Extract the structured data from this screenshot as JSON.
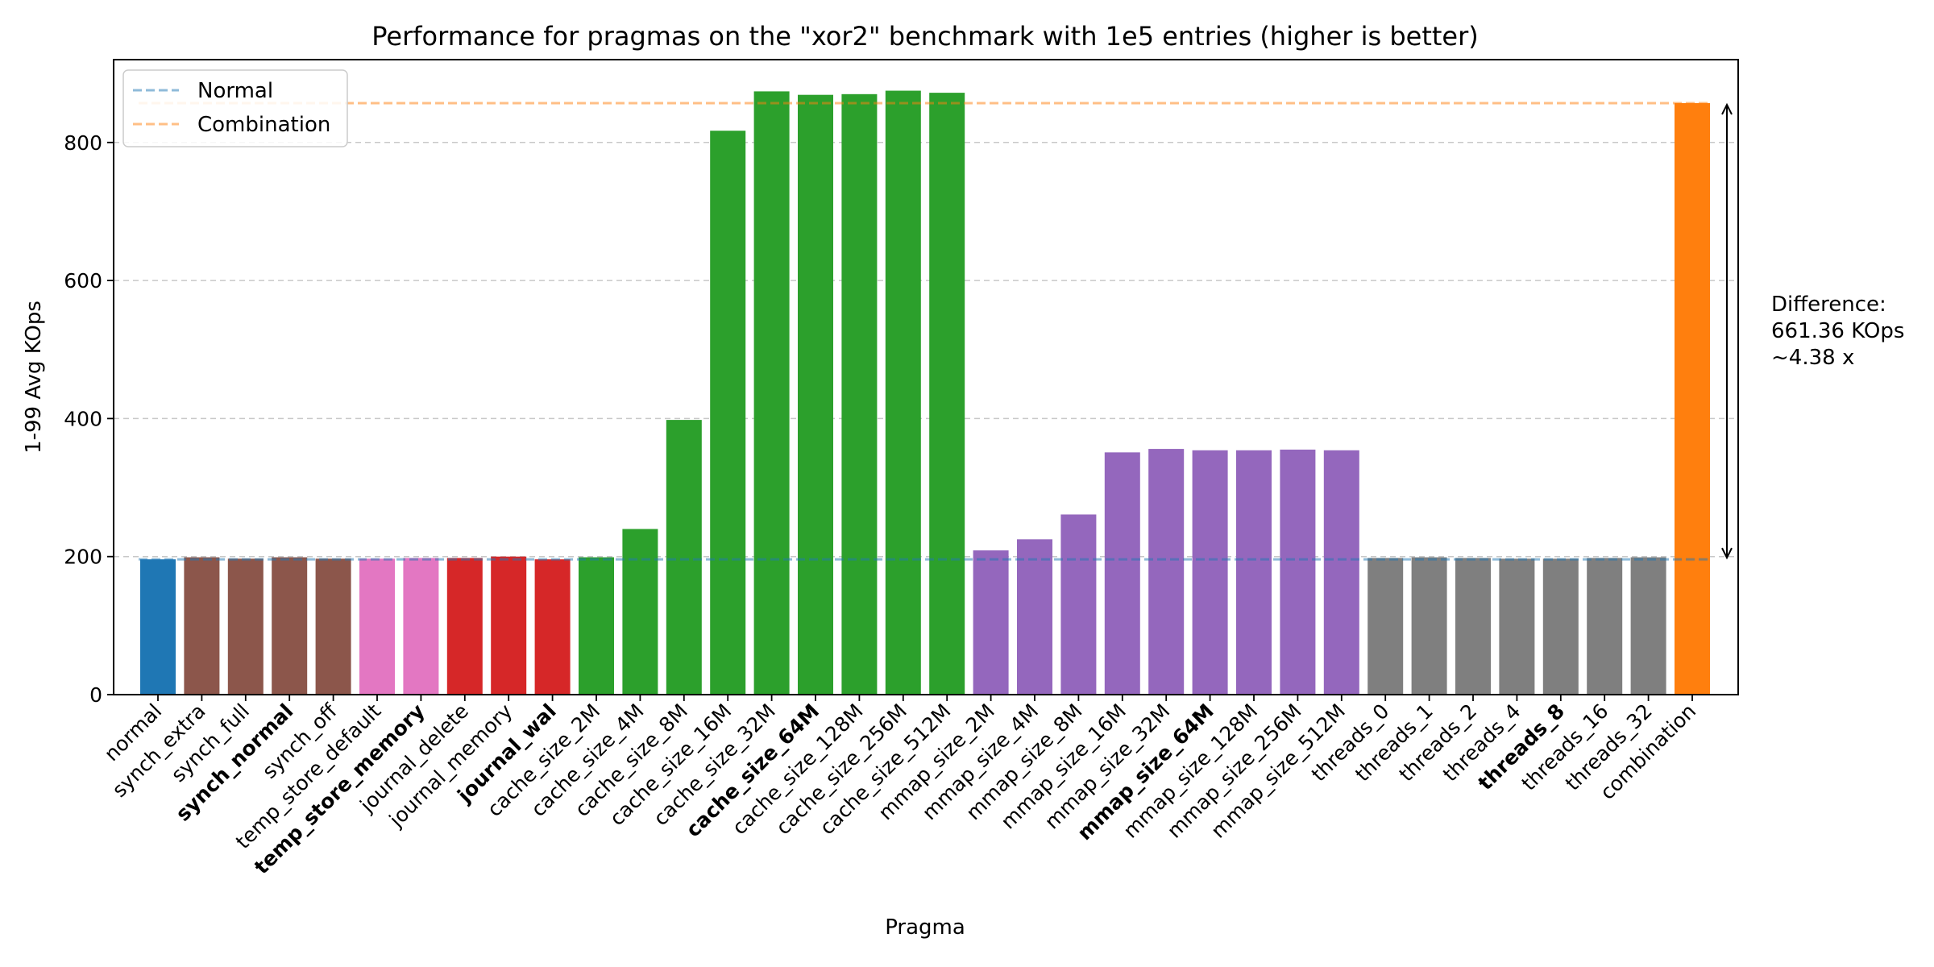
{
  "chart_data": {
    "type": "bar",
    "title": "Performance for pragmas on the \"xor2\" benchmark with 1e5 entries (higher is better)",
    "xlabel": "Pragma",
    "ylabel": "1-99 Avg KOps",
    "ylim": [
      0,
      920
    ],
    "yticks": [
      0,
      200,
      400,
      600,
      800
    ],
    "grid": "y-dashed",
    "legend_position": "top-left",
    "categories": [
      "normal",
      "synch_extra",
      "synch_full",
      "synch_normal",
      "synch_off",
      "temp_store_default",
      "temp_store_memory",
      "journal_delete",
      "journal_memory",
      "journal_wal",
      "cache_size_2M",
      "cache_size_4M",
      "cache_size_8M",
      "cache_size_16M",
      "cache_size_32M",
      "cache_size_64M",
      "cache_size_128M",
      "cache_size_256M",
      "cache_size_512M",
      "mmap_size_2M",
      "mmap_size_4M",
      "mmap_size_8M",
      "mmap_size_16M",
      "mmap_size_32M",
      "mmap_size_64M",
      "mmap_size_128M",
      "mmap_size_256M",
      "mmap_size_512M",
      "threads_0",
      "threads_1",
      "threads_2",
      "threads_4",
      "threads_8",
      "threads_16",
      "threads_32",
      "combination"
    ],
    "values": [
      196,
      199,
      197,
      199,
      197,
      197,
      198,
      198,
      200,
      196,
      199,
      240,
      398,
      817,
      874,
      869,
      870,
      875,
      872,
      209,
      225,
      261,
      351,
      356,
      354,
      354,
      355,
      354,
      198,
      199,
      198,
      197,
      197,
      198,
      199,
      857
    ],
    "bold_categories": [
      "synch_normal",
      "temp_store_memory",
      "journal_wal",
      "cache_size_64M",
      "mmap_size_64M",
      "threads_8"
    ],
    "bar_colors": [
      "#1f77b4",
      "#8c564b",
      "#8c564b",
      "#8c564b",
      "#8c564b",
      "#e377c2",
      "#e377c2",
      "#d62728",
      "#d62728",
      "#d62728",
      "#2ca02c",
      "#2ca02c",
      "#2ca02c",
      "#2ca02c",
      "#2ca02c",
      "#2ca02c",
      "#2ca02c",
      "#2ca02c",
      "#2ca02c",
      "#9467bd",
      "#9467bd",
      "#9467bd",
      "#9467bd",
      "#9467bd",
      "#9467bd",
      "#9467bd",
      "#9467bd",
      "#9467bd",
      "#7f7f7f",
      "#7f7f7f",
      "#7f7f7f",
      "#7f7f7f",
      "#7f7f7f",
      "#7f7f7f",
      "#7f7f7f",
      "#ff7f0e"
    ],
    "reference_lines": [
      {
        "name": "Normal",
        "value": 196,
        "color": "#1f77b4",
        "style": "dashed"
      },
      {
        "name": "Combination",
        "value": 857,
        "color": "#ff7f0e",
        "style": "dashed"
      }
    ],
    "annotation": {
      "lines": [
        "Difference:",
        "661.36 KOps",
        "~4.38 x"
      ],
      "from": 196,
      "to": 857
    }
  }
}
